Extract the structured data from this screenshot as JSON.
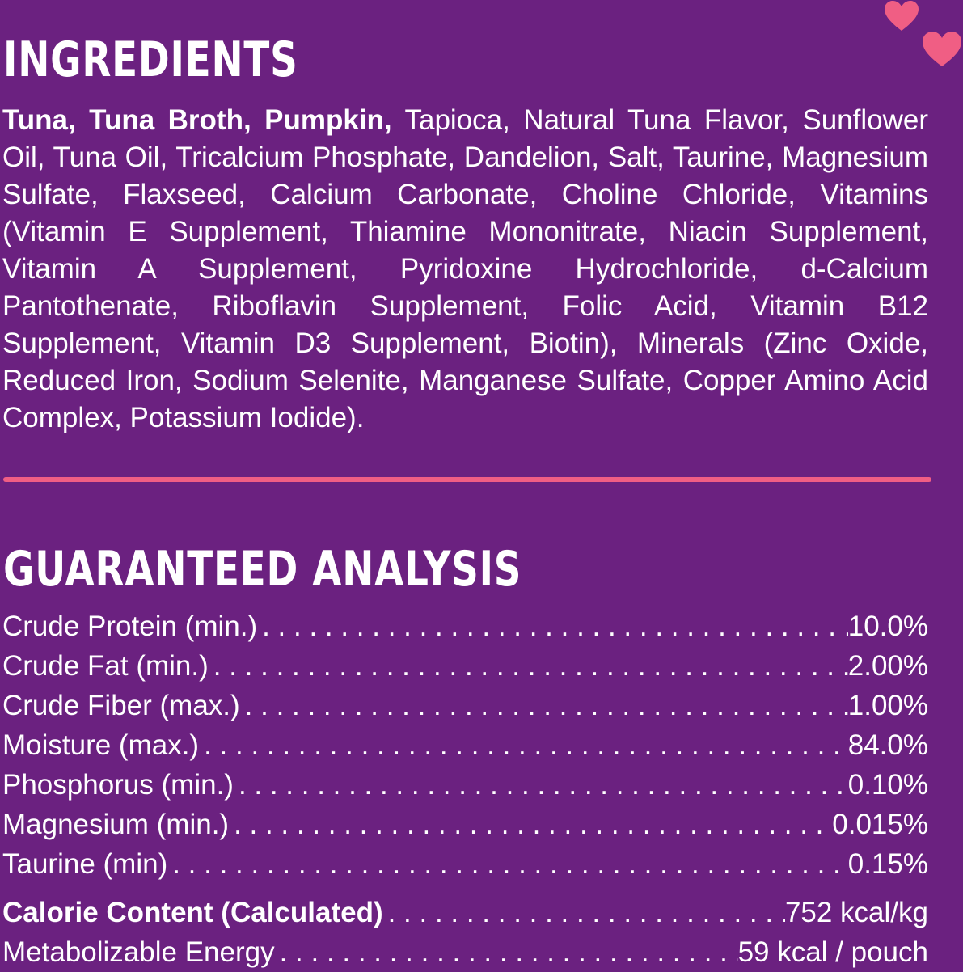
{
  "colors": {
    "background": "#6b2180",
    "text": "#ffffff",
    "accent": "#f05e84"
  },
  "decorations": {
    "icons": [
      "heart-icon",
      "heart-icon"
    ]
  },
  "ingredients": {
    "heading": "INGREDIENTS",
    "bold_lead": "Tuna, Tuna Broth, Pumpkin,",
    "text": " Tapioca, Natural Tuna Flavor, Sunflower Oil, Tuna Oil, Tricalcium Phosphate, Dandelion, Salt, Taurine, Magnesium Sulfate, Flaxseed, Calcium Carbonate, Choline Chloride, Vitamins (Vitamin E Supplement, Thiamine Mononitrate, Niacin Supplement, Vitamin A Supplement, Pyridoxine Hydrochloride, d-Calcium Pantothenate, Riboflavin Supplement, Folic Acid, Vitamin B12 Supplement, Vitamin D3 Supplement, Biotin), Minerals (Zinc Oxide, Reduced Iron, Sodium Selenite, Manganese Sulfate, Copper Amino Acid Complex, Potassium Iodide)."
  },
  "analysis": {
    "heading": "GUARANTEED ANALYSIS",
    "rows": [
      {
        "label": "Crude Protein (min.)",
        "value": "10.0%"
      },
      {
        "label": "Crude Fat (min.)",
        "value": "2.00%"
      },
      {
        "label": "Crude Fiber (max.)",
        "value": "1.00%"
      },
      {
        "label": "Moisture (max.)",
        "value": "84.0%"
      },
      {
        "label": "Phosphorus (min.)",
        "value": "0.10%"
      },
      {
        "label": "Magnesium (min.)",
        "value": "0.015%"
      },
      {
        "label": "Taurine (min)",
        "value": "0.15%"
      }
    ],
    "calorie": {
      "label": "Calorie Content (Calculated)",
      "value": "752 kcal/kg"
    },
    "energy": {
      "label": "Metabolizable Energy",
      "value": "59 kcal / pouch"
    }
  }
}
